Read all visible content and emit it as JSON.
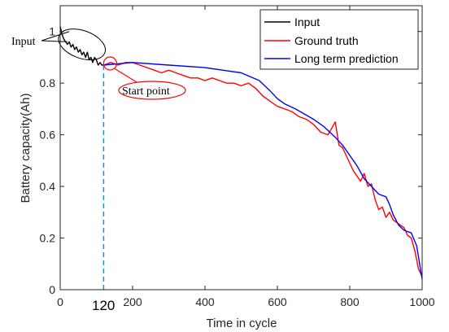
{
  "chart_data": {
    "type": "line",
    "title": "",
    "xlabel": "Time in cycle",
    "ylabel": "Battery capacity(Ah)",
    "xlim": [
      0,
      1000
    ],
    "ylim": [
      0,
      1.1
    ],
    "xticks": [
      "0",
      "200",
      "400",
      "600",
      "800",
      "1000"
    ],
    "yticks": [
      "0",
      "0.2",
      "0.4",
      "0.6",
      "0.8",
      "1"
    ],
    "grid": false,
    "legend_position": "top-right",
    "colors": {
      "input": "#000000",
      "truth": "#ff0000",
      "prediction": "#0000ff",
      "start_line": "#1f8fd6",
      "annotation": "#ff0000"
    },
    "series": [
      {
        "name": "Input",
        "x": [
          0,
          5,
          10,
          15,
          20,
          25,
          30,
          35,
          40,
          45,
          50,
          55,
          60,
          65,
          70,
          75,
          80,
          85,
          90,
          95,
          100,
          105,
          110,
          115,
          120
        ],
        "y": [
          1.02,
          0.99,
          0.97,
          0.96,
          0.95,
          0.96,
          0.94,
          0.95,
          0.93,
          0.94,
          0.92,
          0.93,
          0.91,
          0.92,
          0.9,
          0.92,
          0.89,
          0.9,
          0.88,
          0.9,
          0.89,
          0.87,
          0.88,
          0.87,
          0.87
        ]
      },
      {
        "name": "Ground truth",
        "x": [
          120,
          140,
          160,
          180,
          200,
          220,
          240,
          260,
          280,
          300,
          320,
          340,
          360,
          380,
          400,
          420,
          440,
          460,
          480,
          500,
          520,
          540,
          560,
          580,
          600,
          620,
          640,
          660,
          680,
          700,
          720,
          740,
          760,
          770,
          780,
          790,
          800,
          810,
          820,
          830,
          840,
          850,
          860,
          870,
          880,
          890,
          900,
          910,
          920,
          930,
          940,
          950,
          960,
          970,
          980,
          990,
          1000
        ],
        "y": [
          0.87,
          0.88,
          0.87,
          0.88,
          0.88,
          0.87,
          0.86,
          0.85,
          0.84,
          0.85,
          0.84,
          0.83,
          0.82,
          0.82,
          0.81,
          0.82,
          0.81,
          0.8,
          0.8,
          0.79,
          0.8,
          0.78,
          0.75,
          0.73,
          0.71,
          0.7,
          0.69,
          0.67,
          0.66,
          0.64,
          0.61,
          0.6,
          0.65,
          0.56,
          0.55,
          0.52,
          0.49,
          0.46,
          0.44,
          0.42,
          0.45,
          0.4,
          0.41,
          0.35,
          0.31,
          0.32,
          0.28,
          0.3,
          0.27,
          0.26,
          0.25,
          0.24,
          0.21,
          0.2,
          0.15,
          0.08,
          0.05
        ]
      },
      {
        "name": "Long term prediction",
        "x": [
          120,
          200,
          300,
          400,
          450,
          500,
          550,
          580,
          600,
          620,
          650,
          700,
          730,
          760,
          780,
          800,
          820,
          840,
          860,
          880,
          900,
          910,
          920,
          935,
          950,
          970,
          985,
          1000
        ],
        "y": [
          0.87,
          0.88,
          0.87,
          0.86,
          0.85,
          0.84,
          0.81,
          0.77,
          0.74,
          0.72,
          0.7,
          0.66,
          0.63,
          0.59,
          0.56,
          0.52,
          0.48,
          0.43,
          0.4,
          0.37,
          0.36,
          0.33,
          0.29,
          0.25,
          0.23,
          0.22,
          0.17,
          0.04
        ]
      }
    ],
    "annotations": {
      "input_label": "Input",
      "start_label": "Start point",
      "start_x_label": "120",
      "start_x": 120,
      "start_y": 0.87
    }
  }
}
